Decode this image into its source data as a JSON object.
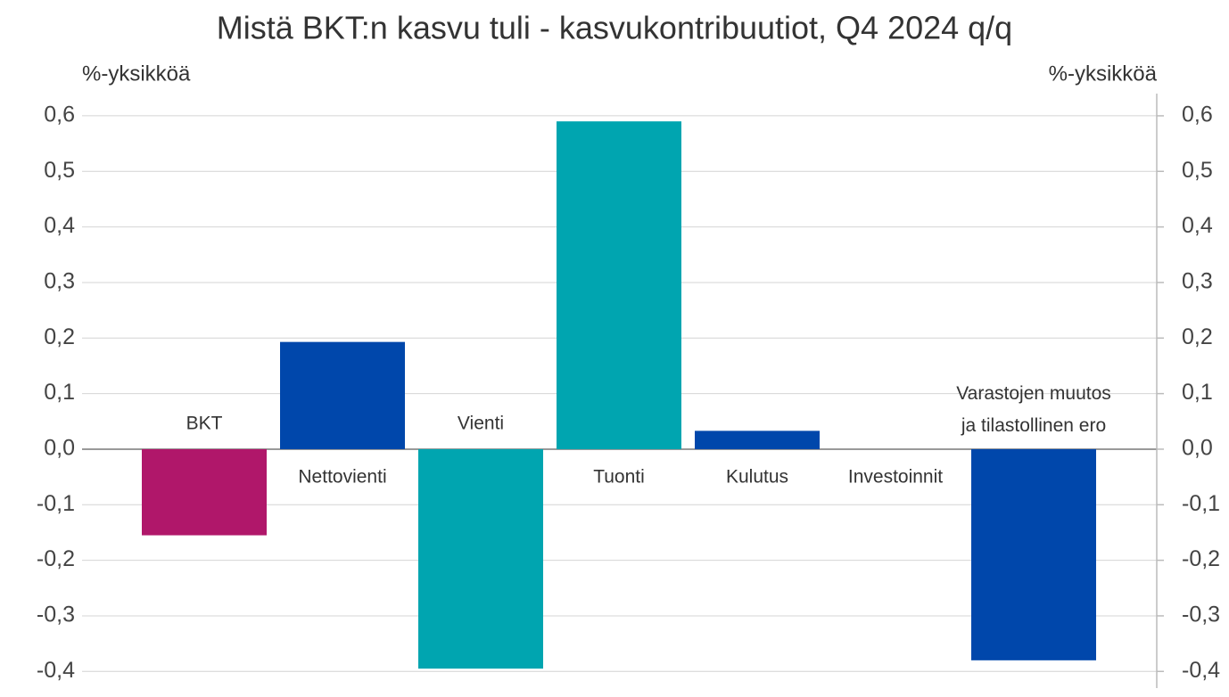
{
  "chart_data": {
    "type": "bar",
    "title": "Mistä BKT:n kasvu tuli - kasvukontribuutiot, Q4 2024 q/q",
    "ylabel": "%-yksikköä",
    "y2label": "%-yksikköä",
    "categories": [
      "BKT",
      "Nettovienti",
      "Vienti",
      "Tuonti",
      "Kulutus",
      "Investoinnit",
      [
        "Varastojen muutos",
        "ja tilastollinen ero"
      ]
    ],
    "values": [
      -0.155,
      0.193,
      -0.395,
      0.59,
      0.033,
      0.0,
      -0.38
    ],
    "colors": [
      "#b0176a",
      "#0047ab",
      "#00a5b0",
      "#00a5b0",
      "#0047ab",
      "#0047ab",
      "#0047ab"
    ],
    "ylim": [
      -0.43,
      0.64
    ],
    "yticks": [
      {
        "value": 0.6,
        "label": "0,6"
      },
      {
        "value": 0.5,
        "label": "0,5"
      },
      {
        "value": 0.4,
        "label": "0,4"
      },
      {
        "value": 0.3,
        "label": "0,3"
      },
      {
        "value": 0.2,
        "label": "0,2"
      },
      {
        "value": 0.1,
        "label": "0,1"
      },
      {
        "value": 0,
        "label": "0,0"
      },
      {
        "value": -0.1,
        "label": "-0,1"
      },
      {
        "value": -0.2,
        "label": "-0,2"
      },
      {
        "value": -0.3,
        "label": "-0,3"
      },
      {
        "value": -0.4,
        "label": "-0,4"
      }
    ],
    "y2lim": [
      -0.43,
      0.64
    ],
    "y2ticks": [
      {
        "value": 0.6,
        "label": "0,6"
      },
      {
        "value": 0.5,
        "label": "0,5"
      },
      {
        "value": 0.4,
        "label": "0,4"
      },
      {
        "value": 0.3,
        "label": "0,3"
      },
      {
        "value": 0.2,
        "label": "0,2"
      },
      {
        "value": 0.1,
        "label": "0,1"
      },
      {
        "value": 0,
        "label": "0,0"
      },
      {
        "value": -0.1,
        "label": "-0,1"
      },
      {
        "value": -0.2,
        "label": "-0,2"
      },
      {
        "value": -0.3,
        "label": "-0,3"
      },
      {
        "value": -0.4,
        "label": "-0,4"
      }
    ],
    "grid": true
  }
}
